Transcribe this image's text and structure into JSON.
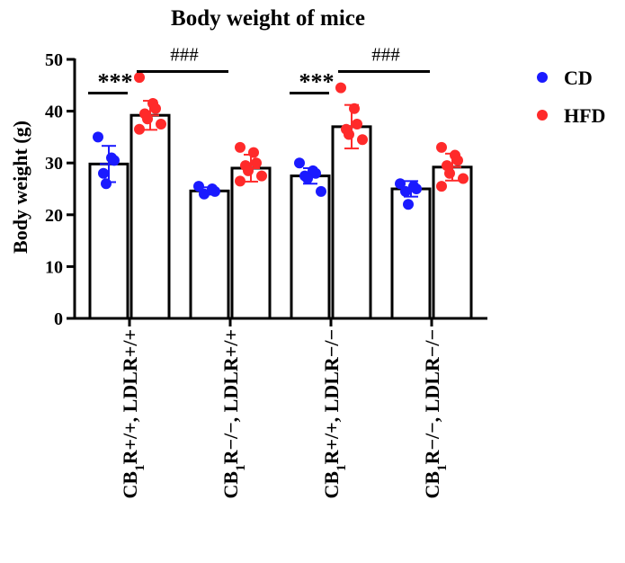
{
  "chart_data": {
    "type": "bar",
    "title": "Body weight of mice",
    "ylabel": "Body weight  (g)",
    "ylim": [
      0,
      50
    ],
    "yticks": [
      0,
      10,
      20,
      30,
      40,
      50
    ],
    "grid": false,
    "legend_position": "top-right",
    "categories": [
      {
        "main": "CB",
        "sub": "1",
        "rest": "R+/+, LDLR+/+"
      },
      {
        "main": "CB",
        "sub": "1",
        "rest": "R−/−, LDLR+/+"
      },
      {
        "main": "CB",
        "sub": "1",
        "rest": "R+/+, LDLR−/−"
      },
      {
        "main": "CB",
        "sub": "1",
        "rest": "R−/−, LDLR−/−"
      }
    ],
    "series": [
      {
        "name": "CD",
        "color": "#1a1aff",
        "values": [
          29.8,
          24.6,
          27.5,
          25.0
        ],
        "errors": [
          3.5,
          0.7,
          1.5,
          1.5
        ],
        "points": [
          [
            35.0,
            31.0,
            30.5,
            28.0,
            26.0
          ],
          [
            25.5,
            25.0,
            24.5,
            24.0
          ],
          [
            30.0,
            28.5,
            28.0,
            27.5,
            27.0,
            24.5
          ],
          [
            26.0,
            25.5,
            25.0,
            24.5,
            22.0
          ]
        ]
      },
      {
        "name": "HFD",
        "color": "#ff2a2a",
        "values": [
          39.2,
          29.0,
          37.0,
          29.2
        ],
        "errors": [
          2.8,
          2.6,
          4.2,
          2.6
        ],
        "points": [
          [
            46.5,
            41.5,
            40.5,
            39.5,
            38.5,
            37.5,
            36.5
          ],
          [
            33.0,
            32.0,
            30.0,
            29.5,
            28.5,
            27.5,
            26.5
          ],
          [
            44.5,
            40.5,
            37.5,
            36.5,
            35.5,
            34.5
          ],
          [
            33.0,
            31.5,
            30.5,
            29.5,
            28.0,
            27.0,
            25.5
          ]
        ]
      }
    ],
    "annotations": [
      {
        "text": "***",
        "from_group": 0,
        "y": 43.5,
        "kind": "within"
      },
      {
        "text": "***",
        "from_group": 2,
        "y": 43.5,
        "kind": "within"
      },
      {
        "text": "###",
        "from_group": 0,
        "to_group": 1,
        "y": 48.0,
        "kind": "between"
      },
      {
        "text": "###",
        "from_group": 2,
        "to_group": 3,
        "y": 48.0,
        "kind": "between"
      }
    ]
  }
}
